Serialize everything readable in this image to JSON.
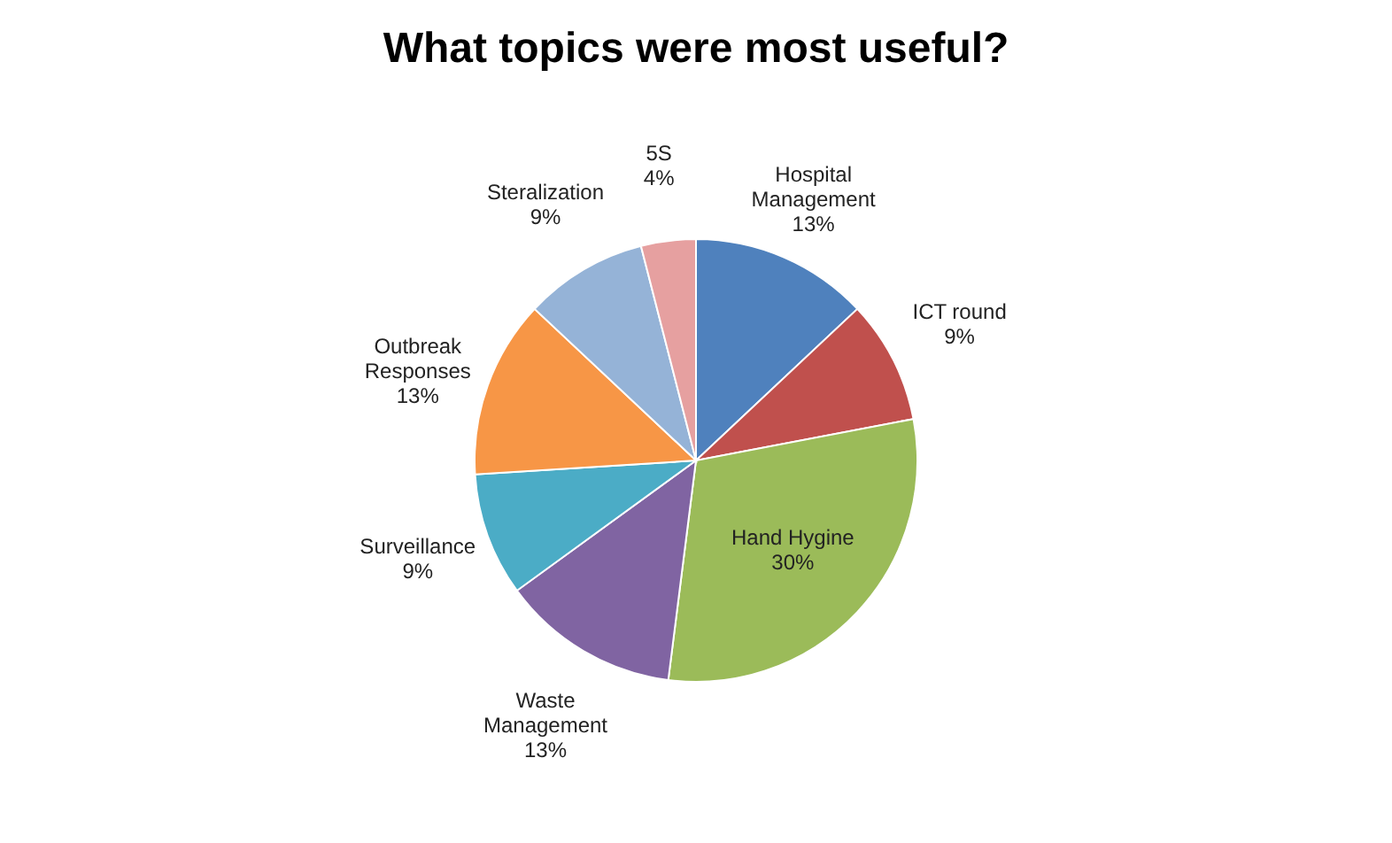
{
  "chart_data": {
    "type": "pie",
    "title": "What topics were most useful?",
    "categories": [
      "Hospital Management",
      "ICT round",
      "Hand Hygine",
      "Waste Management",
      "Surveillance",
      "Outbreak Responses",
      "Steralization",
      "5S"
    ],
    "values": [
      13,
      9,
      30,
      13,
      9,
      13,
      9,
      4
    ],
    "value_labels": [
      "13%",
      "9%",
      "30%",
      "13%",
      "9%",
      "13%",
      "9%",
      "4%"
    ],
    "colors": [
      "#4f81bd",
      "#c0504d",
      "#9bbb59",
      "#8064a2",
      "#4bacc6",
      "#f79646",
      "#95b3d7",
      "#e6a0a0"
    ]
  }
}
